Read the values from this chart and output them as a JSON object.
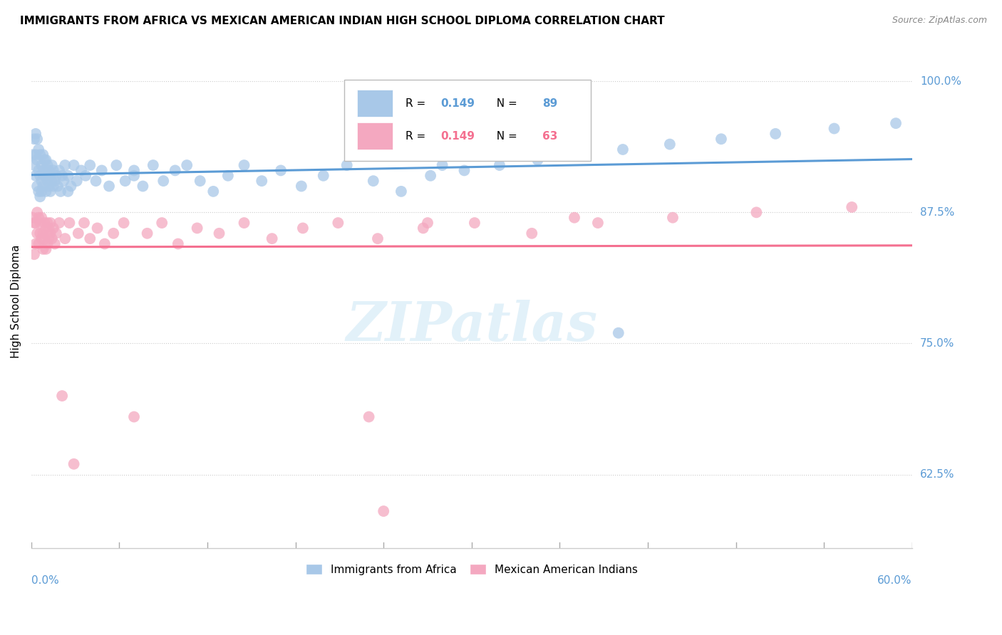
{
  "title": "IMMIGRANTS FROM AFRICA VS MEXICAN AMERICAN INDIAN HIGH SCHOOL DIPLOMA CORRELATION CHART",
  "source": "Source: ZipAtlas.com",
  "ylabel": "High School Diploma",
  "xmin": 0.0,
  "xmax": 0.6,
  "ymin": 0.555,
  "ymax": 1.025,
  "yticks": [
    0.625,
    0.75,
    0.875,
    1.0
  ],
  "ytick_labels": [
    "62.5%",
    "75.0%",
    "87.5%",
    "100.0%"
  ],
  "blue_color": "#a8c8e8",
  "pink_color": "#f4a8c0",
  "blue_line_color": "#5b9bd5",
  "pink_line_color": "#f47090",
  "blue_R": 0.149,
  "blue_N": 89,
  "pink_R": 0.149,
  "pink_N": 63,
  "blue_label": "Immigrants from Africa",
  "pink_label": "Mexican American Indians",
  "watermark": "ZIPatlas",
  "blue_scatter_x": [
    0.001,
    0.002,
    0.002,
    0.003,
    0.003,
    0.003,
    0.004,
    0.004,
    0.004,
    0.005,
    0.005,
    0.005,
    0.006,
    0.006,
    0.006,
    0.007,
    0.007,
    0.007,
    0.008,
    0.008,
    0.008,
    0.009,
    0.009,
    0.01,
    0.01,
    0.01,
    0.011,
    0.011,
    0.012,
    0.012,
    0.013,
    0.013,
    0.014,
    0.014,
    0.015,
    0.015,
    0.016,
    0.017,
    0.018,
    0.019,
    0.02,
    0.021,
    0.022,
    0.023,
    0.025,
    0.027,
    0.029,
    0.031,
    0.034,
    0.037,
    0.04,
    0.044,
    0.048,
    0.053,
    0.058,
    0.064,
    0.07,
    0.076,
    0.083,
    0.09,
    0.098,
    0.106,
    0.115,
    0.124,
    0.134,
    0.145,
    0.157,
    0.17,
    0.184,
    0.199,
    0.215,
    0.233,
    0.252,
    0.272,
    0.295,
    0.319,
    0.345,
    0.373,
    0.403,
    0.435,
    0.47,
    0.507,
    0.547,
    0.589,
    0.34,
    0.4,
    0.025,
    0.28,
    0.07
  ],
  "blue_scatter_y": [
    0.93,
    0.92,
    0.945,
    0.91,
    0.93,
    0.95,
    0.9,
    0.925,
    0.945,
    0.895,
    0.915,
    0.935,
    0.89,
    0.91,
    0.93,
    0.905,
    0.92,
    0.895,
    0.915,
    0.93,
    0.9,
    0.91,
    0.925,
    0.895,
    0.91,
    0.925,
    0.905,
    0.92,
    0.9,
    0.915,
    0.895,
    0.91,
    0.905,
    0.92,
    0.9,
    0.915,
    0.905,
    0.91,
    0.9,
    0.915,
    0.895,
    0.91,
    0.905,
    0.92,
    0.91,
    0.9,
    0.92,
    0.905,
    0.915,
    0.91,
    0.92,
    0.905,
    0.915,
    0.9,
    0.92,
    0.905,
    0.915,
    0.9,
    0.92,
    0.905,
    0.915,
    0.92,
    0.905,
    0.895,
    0.91,
    0.92,
    0.905,
    0.915,
    0.9,
    0.91,
    0.92,
    0.905,
    0.895,
    0.91,
    0.915,
    0.92,
    0.925,
    0.93,
    0.935,
    0.94,
    0.945,
    0.95,
    0.955,
    0.96,
    0.93,
    0.76,
    0.895,
    0.92,
    0.91
  ],
  "pink_scatter_x": [
    0.001,
    0.002,
    0.002,
    0.003,
    0.003,
    0.004,
    0.004,
    0.005,
    0.005,
    0.006,
    0.006,
    0.007,
    0.007,
    0.008,
    0.008,
    0.009,
    0.009,
    0.01,
    0.01,
    0.011,
    0.011,
    0.012,
    0.012,
    0.013,
    0.013,
    0.014,
    0.015,
    0.016,
    0.017,
    0.019,
    0.021,
    0.023,
    0.026,
    0.029,
    0.032,
    0.036,
    0.04,
    0.045,
    0.05,
    0.056,
    0.063,
    0.07,
    0.079,
    0.089,
    0.1,
    0.113,
    0.128,
    0.145,
    0.164,
    0.185,
    0.209,
    0.236,
    0.267,
    0.302,
    0.341,
    0.386,
    0.437,
    0.494,
    0.559,
    0.37,
    0.27,
    0.23,
    0.24
  ],
  "pink_scatter_y": [
    0.87,
    0.835,
    0.865,
    0.845,
    0.865,
    0.855,
    0.875,
    0.845,
    0.87,
    0.855,
    0.865,
    0.85,
    0.87,
    0.855,
    0.84,
    0.865,
    0.85,
    0.84,
    0.86,
    0.845,
    0.865,
    0.85,
    0.86,
    0.855,
    0.865,
    0.85,
    0.86,
    0.845,
    0.855,
    0.865,
    0.7,
    0.85,
    0.865,
    0.635,
    0.855,
    0.865,
    0.85,
    0.86,
    0.845,
    0.855,
    0.865,
    0.68,
    0.855,
    0.865,
    0.845,
    0.86,
    0.855,
    0.865,
    0.85,
    0.86,
    0.865,
    0.85,
    0.86,
    0.865,
    0.855,
    0.865,
    0.87,
    0.875,
    0.88,
    0.87,
    0.865,
    0.68,
    0.59
  ]
}
